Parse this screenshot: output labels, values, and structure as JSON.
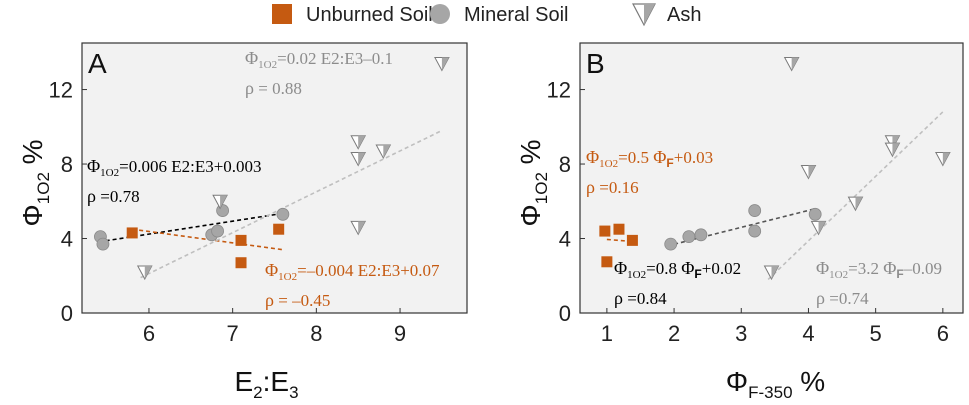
{
  "legend": {
    "placement": "top-center",
    "items": [
      {
        "label": "Unburned Soil",
        "marker": "square",
        "color": "#c55a11"
      },
      {
        "label": "Mineral Soil",
        "marker": "circle",
        "color": "#a6a6a6"
      },
      {
        "label": "Ash",
        "marker": "triangle-down",
        "color": "#a6a6a6"
      }
    ]
  },
  "colors": {
    "unburned": "#c55a11",
    "mineral": "#a6a6a6",
    "ash": "#a6a6a6",
    "fit_black": "#000000",
    "fit_mineral": "#555555",
    "fit_ash": "#bfbfbf",
    "annot_gray": "#8c8c8c",
    "panel_bg": "#f2f2f2"
  },
  "chart_data": [
    {
      "panel_letter": "A",
      "type": "scatter",
      "xlim": [
        5.2,
        9.8
      ],
      "ylim": [
        0,
        14.5
      ],
      "xticks": [
        6,
        7,
        8,
        9
      ],
      "yticks": [
        0,
        4,
        8,
        12
      ],
      "xticklabels": [
        "6",
        "7",
        "8",
        "9"
      ],
      "yticklabels": [
        "0",
        "4",
        "8",
        "12"
      ],
      "xlabel": {
        "base": "E",
        "sub1": "2",
        "mid": ":E",
        "sub2": "3"
      },
      "ylabel": {
        "base": "Φ",
        "sub": "1O2",
        "unit": "%"
      },
      "series": [
        {
          "name": "Unburned Soil",
          "marker": "square",
          "color": "#c55a11",
          "x": [
            5.8,
            7.1,
            7.1,
            7.55
          ],
          "y": [
            4.3,
            3.9,
            2.7,
            4.5
          ]
        },
        {
          "name": "Mineral Soil",
          "marker": "circle",
          "color": "#a6a6a6",
          "x": [
            5.42,
            5.45,
            6.75,
            6.82,
            6.88,
            7.6
          ],
          "y": [
            4.1,
            3.7,
            4.2,
            4.4,
            5.5,
            5.3
          ]
        },
        {
          "name": "Ash",
          "marker": "triangle-down",
          "color": "#a6a6a6",
          "x": [
            5.95,
            6.85,
            8.5,
            8.5,
            8.5,
            8.8,
            9.5
          ],
          "y": [
            2.2,
            6.0,
            9.2,
            8.3,
            4.6,
            8.7,
            13.4
          ]
        }
      ],
      "fits": [
        {
          "color": "#000000",
          "x": [
            5.4,
            7.6
          ],
          "y": [
            3.82,
            5.35
          ]
        },
        {
          "color": "#c55a11",
          "x": [
            5.8,
            7.6
          ],
          "y": [
            4.5,
            3.4
          ]
        },
        {
          "color": "#bfbfbf",
          "x": [
            5.9,
            9.5
          ],
          "y": [
            1.9,
            9.8
          ]
        }
      ],
      "annotations": [
        {
          "sym": "Φ",
          "sub": "1O2",
          "subbold": false,
          "eq": "=0.02 E2:E3–0.1",
          "color": "#8c8c8c"
        },
        {
          "sym": "ρ",
          "sub": "",
          "subbold": false,
          "eq": " = 0.88",
          "color": "#8c8c8c"
        },
        {
          "sym": "Φ",
          "sub": "1O2",
          "subbold": false,
          "eq": "=0.006 E2:E3+0.003",
          "color": "#000000"
        },
        {
          "sym": "ρ",
          "sub": "",
          "subbold": false,
          "eq": " =0.78",
          "color": "#000000"
        },
        {
          "sym": "Φ",
          "sub": "1O2",
          "subbold": false,
          "eq": "=–0.004 E2:E3+0.07",
          "color": "#c55a11"
        },
        {
          "sym": "ρ",
          "sub": "",
          "subbold": false,
          "eq": " = –0.45",
          "color": "#c55a11"
        }
      ]
    },
    {
      "panel_letter": "B",
      "type": "scatter",
      "xlim": [
        0.6,
        6.3
      ],
      "ylim": [
        0,
        14.5
      ],
      "xticks": [
        1,
        2,
        3,
        4,
        5,
        6
      ],
      "yticks": [
        0,
        4,
        8,
        12
      ],
      "xticklabels": [
        "1",
        "2",
        "3",
        "4",
        "5",
        "6"
      ],
      "yticklabels": [
        "0",
        "4",
        "8",
        "12"
      ],
      "xlabel": {
        "base": "Φ",
        "sub": "F-350",
        "unit": "%"
      },
      "ylabel": {
        "base": "Φ",
        "sub": "1O2",
        "unit": "%"
      },
      "series": [
        {
          "name": "Unburned Soil",
          "marker": "square",
          "color": "#c55a11",
          "x": [
            0.97,
            1.0,
            1.18,
            1.38
          ],
          "y": [
            4.4,
            2.75,
            4.5,
            3.9
          ]
        },
        {
          "name": "Mineral Soil",
          "marker": "circle",
          "color": "#a6a6a6",
          "x": [
            1.95,
            2.22,
            2.4,
            3.2,
            3.2,
            4.1
          ],
          "y": [
            3.7,
            4.1,
            4.2,
            5.5,
            4.4,
            5.3
          ]
        },
        {
          "name": "Ash",
          "marker": "triangle-down",
          "color": "#a6a6a6",
          "x": [
            3.45,
            3.75,
            4.0,
            4.15,
            4.7,
            5.25,
            5.25,
            6.0
          ],
          "y": [
            2.2,
            13.4,
            7.6,
            4.6,
            5.9,
            9.2,
            8.8,
            8.3
          ]
        }
      ],
      "fits": [
        {
          "color": "#555555",
          "x": [
            1.9,
            4.1
          ],
          "y": [
            3.6,
            5.6
          ]
        },
        {
          "color": "#c55a11",
          "x": [
            1.0,
            1.35
          ],
          "y": [
            3.95,
            3.85
          ]
        },
        {
          "color": "#bfbfbf",
          "x": [
            3.4,
            6.0
          ],
          "y": [
            1.8,
            10.8
          ]
        }
      ],
      "annotations": [
        {
          "sym": "Φ",
          "sub": "1O2",
          "subbold": false,
          "eq": "=0.5 ",
          "color": "#c55a11",
          "sym2": "Φ",
          "sub2": "F",
          "eq2": "+0.03"
        },
        {
          "sym": "ρ",
          "sub": "",
          "subbold": false,
          "eq": " =0.16",
          "color": "#c55a11"
        },
        {
          "sym": "Φ",
          "sub": "1O2",
          "subbold": false,
          "eq": "=0.8 ",
          "color": "#000000",
          "sym2": "Φ",
          "sub2": "F",
          "eq2": "+0.02"
        },
        {
          "sym": "ρ",
          "sub": "",
          "subbold": false,
          "eq": " =0.84",
          "color": "#000000"
        },
        {
          "sym": "Φ",
          "sub": "1O2",
          "subbold": false,
          "eq": "=3.2 ",
          "color": "#8c8c8c",
          "sym2": "Φ",
          "sub2": "F",
          "eq2": "–0.09"
        },
        {
          "sym": "ρ",
          "sub": "",
          "subbold": false,
          "eq": " =0.74",
          "color": "#8c8c8c"
        }
      ]
    }
  ]
}
